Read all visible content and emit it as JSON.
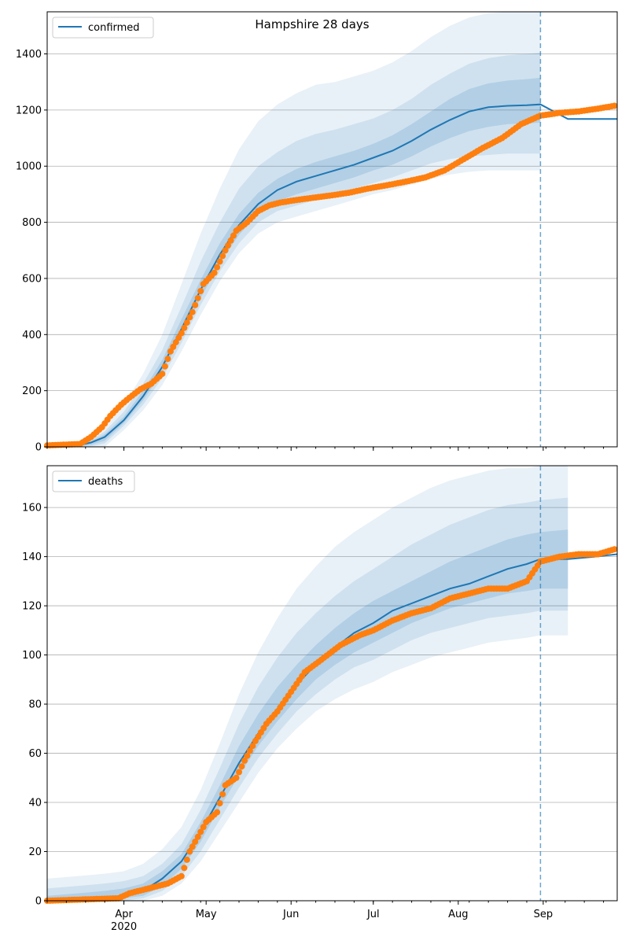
{
  "figure": {
    "title": "Hampshire 28 days",
    "date_ticks": [
      {
        "date": "2020-04-01",
        "label": "Apr",
        "sub": "2020"
      },
      {
        "date": "2020-05-01",
        "label": "May",
        "sub": ""
      },
      {
        "date": "2020-06-01",
        "label": "Jun",
        "sub": ""
      },
      {
        "date": "2020-07-01",
        "label": "Jul",
        "sub": ""
      },
      {
        "date": "2020-08-01",
        "label": "Aug",
        "sub": ""
      },
      {
        "date": "2020-09-01",
        "label": "Sep",
        "sub": ""
      }
    ],
    "forecast_date": "2020-08-31",
    "colors": {
      "model": "#1f77b4",
      "observed": "#ff7f0e",
      "band": "#1f77b4",
      "grid": "#b0b0b0"
    }
  },
  "chart_data": [
    {
      "type": "line",
      "legend": "confirmed",
      "legend_placement": "top-left",
      "grid": "horizontal",
      "xlim": [
        "2020-03-04",
        "2020-09-28"
      ],
      "ylim": [
        0,
        1550
      ],
      "yticks": [
        0,
        200,
        400,
        600,
        800,
        1000,
        1200,
        1400
      ],
      "model": {
        "name": "confirmed",
        "dates": [
          "2020-03-04",
          "2020-03-15",
          "2020-03-20",
          "2020-03-25",
          "2020-04-01",
          "2020-04-08",
          "2020-04-15",
          "2020-04-22",
          "2020-04-29",
          "2020-05-06",
          "2020-05-13",
          "2020-05-20",
          "2020-05-27",
          "2020-06-03",
          "2020-06-10",
          "2020-06-17",
          "2020-06-24",
          "2020-07-01",
          "2020-07-08",
          "2020-07-15",
          "2020-07-22",
          "2020-07-29",
          "2020-08-05",
          "2020-08-12",
          "2020-08-19",
          "2020-08-26",
          "2020-08-31",
          "2020-09-10",
          "2020-09-28"
        ],
        "values": [
          0,
          5,
          15,
          35,
          95,
          180,
          285,
          420,
          560,
          685,
          790,
          865,
          915,
          945,
          965,
          985,
          1005,
          1030,
          1055,
          1090,
          1130,
          1165,
          1195,
          1210,
          1215,
          1217,
          1220,
          1168,
          1168
        ]
      },
      "bands": [
        {
          "lower": [
            0,
            0,
            0,
            0,
            60,
            130,
            220,
            340,
            470,
            590,
            690,
            760,
            800,
            820,
            840,
            860,
            880,
            900,
            915,
            935,
            955,
            970,
            980,
            985,
            985,
            985,
            985
          ],
          "upper": [
            0,
            12,
            30,
            70,
            150,
            260,
            400,
            580,
            760,
            920,
            1060,
            1160,
            1220,
            1260,
            1290,
            1300,
            1320,
            1340,
            1370,
            1410,
            1460,
            1500,
            1530,
            1545,
            1550,
            1550,
            1550
          ]
        },
        {
          "lower": [
            0,
            0,
            2,
            12,
            75,
            150,
            245,
            370,
            505,
            625,
            725,
            800,
            840,
            860,
            880,
            900,
            920,
            940,
            960,
            985,
            1010,
            1025,
            1035,
            1040,
            1045,
            1045,
            1045
          ],
          "upper": [
            0,
            8,
            24,
            55,
            125,
            225,
            345,
            500,
            660,
            800,
            920,
            1000,
            1050,
            1090,
            1115,
            1130,
            1150,
            1170,
            1200,
            1240,
            1290,
            1330,
            1365,
            1385,
            1395,
            1400,
            1405
          ]
        },
        {
          "lower": [
            0,
            1,
            7,
            22,
            85,
            165,
            265,
            395,
            530,
            655,
            755,
            830,
            875,
            900,
            920,
            940,
            960,
            985,
            1005,
            1035,
            1070,
            1100,
            1125,
            1140,
            1150,
            1152,
            1155
          ],
          "upper": [
            0,
            6,
            20,
            45,
            108,
            200,
            310,
            455,
            595,
            725,
            830,
            905,
            955,
            990,
            1015,
            1035,
            1055,
            1080,
            1110,
            1150,
            1195,
            1240,
            1275,
            1295,
            1305,
            1310,
            1315
          ]
        }
      ],
      "observed": {
        "dates": [
          "2020-03-04",
          "2020-03-16",
          "2020-03-20",
          "2020-03-24",
          "2020-03-27",
          "2020-03-31",
          "2020-04-03",
          "2020-04-07",
          "2020-04-11",
          "2020-04-15",
          "2020-04-18",
          "2020-04-22",
          "2020-04-26",
          "2020-04-30",
          "2020-05-04",
          "2020-05-08",
          "2020-05-12",
          "2020-05-16",
          "2020-05-20",
          "2020-05-24",
          "2020-05-28",
          "2020-06-02",
          "2020-06-08",
          "2020-06-15",
          "2020-06-22",
          "2020-06-29",
          "2020-07-06",
          "2020-07-13",
          "2020-07-20",
          "2020-07-27",
          "2020-08-03",
          "2020-08-10",
          "2020-08-17",
          "2020-08-24",
          "2020-08-31",
          "2020-09-07",
          "2020-09-14",
          "2020-09-21",
          "2020-09-27"
        ],
        "values": [
          5,
          10,
          35,
          70,
          110,
          150,
          175,
          205,
          225,
          260,
          340,
          405,
          480,
          580,
          620,
          700,
          770,
          800,
          840,
          860,
          870,
          878,
          886,
          895,
          905,
          920,
          932,
          945,
          960,
          985,
          1025,
          1065,
          1100,
          1150,
          1180,
          1190,
          1195,
          1205,
          1215
        ]
      }
    },
    {
      "type": "line",
      "legend": "deaths",
      "legend_placement": "top-left",
      "grid": "horizontal",
      "xlim": [
        "2020-03-04",
        "2020-09-28"
      ],
      "ylim": [
        0,
        177
      ],
      "yticks": [
        0,
        20,
        40,
        60,
        80,
        100,
        120,
        140,
        160
      ],
      "model": {
        "name": "deaths",
        "dates": [
          "2020-03-04",
          "2020-03-15",
          "2020-03-25",
          "2020-04-01",
          "2020-04-08",
          "2020-04-15",
          "2020-04-22",
          "2020-04-29",
          "2020-05-06",
          "2020-05-13",
          "2020-05-20",
          "2020-05-27",
          "2020-06-03",
          "2020-06-10",
          "2020-06-17",
          "2020-06-24",
          "2020-07-01",
          "2020-07-08",
          "2020-07-15",
          "2020-07-22",
          "2020-07-29",
          "2020-08-05",
          "2020-08-12",
          "2020-08-19",
          "2020-08-26",
          "2020-08-31",
          "2020-09-10",
          "2020-09-20",
          "2020-09-28"
        ],
        "values": [
          0,
          0,
          1,
          2,
          4,
          9,
          16,
          28,
          42,
          56,
          68,
          78,
          88,
          96,
          103,
          109,
          113,
          118,
          121,
          124,
          127,
          129,
          132,
          135,
          137,
          139,
          139,
          140,
          141
        ]
      },
      "bands": [
        {
          "lower": [
            0,
            0,
            0,
            0,
            0,
            2,
            7,
            16,
            28,
            40,
            52,
            62,
            70,
            77,
            82,
            86,
            89,
            93,
            96,
            99,
            101,
            103,
            105,
            106,
            107,
            108,
            108
          ],
          "upper": [
            9,
            10,
            11,
            12,
            15,
            21,
            30,
            45,
            64,
            84,
            101,
            115,
            127,
            136,
            144,
            150,
            155,
            160,
            164,
            168,
            171,
            173,
            175,
            176,
            176,
            177,
            177
          ]
        },
        {
          "lower": [
            0,
            0,
            0,
            0,
            1,
            4,
            10,
            20,
            33,
            46,
            58,
            68,
            77,
            84,
            90,
            95,
            98,
            102,
            106,
            109,
            111,
            113,
            115,
            116,
            117,
            118,
            118
          ],
          "upper": [
            5,
            6,
            7,
            8,
            10,
            15,
            23,
            37,
            54,
            72,
            87,
            99,
            109,
            117,
            124,
            130,
            135,
            140,
            145,
            149,
            153,
            156,
            159,
            161,
            162,
            163,
            164
          ]
        },
        {
          "lower": [
            0,
            0,
            0,
            1,
            2,
            6,
            13,
            24,
            38,
            51,
            63,
            73,
            82,
            90,
            96,
            101,
            105,
            109,
            113,
            116,
            119,
            121,
            123,
            125,
            126,
            127,
            127
          ],
          "upper": [
            2,
            3,
            4,
            5,
            7,
            12,
            19,
            32,
            47,
            63,
            76,
            87,
            96,
            104,
            111,
            117,
            122,
            126,
            130,
            134,
            138,
            141,
            144,
            147,
            149,
            150,
            151
          ]
        }
      ],
      "observed": {
        "dates": [
          "2020-03-04",
          "2020-03-30",
          "2020-04-03",
          "2020-04-10",
          "2020-04-17",
          "2020-04-22",
          "2020-04-25",
          "2020-04-28",
          "2020-05-01",
          "2020-05-05",
          "2020-05-08",
          "2020-05-12",
          "2020-05-15",
          "2020-05-19",
          "2020-05-23",
          "2020-05-27",
          "2020-06-01",
          "2020-06-06",
          "2020-06-12",
          "2020-06-19",
          "2020-06-26",
          "2020-07-01",
          "2020-07-08",
          "2020-07-15",
          "2020-07-22",
          "2020-07-29",
          "2020-08-05",
          "2020-08-12",
          "2020-08-19",
          "2020-08-26",
          "2020-08-31",
          "2020-09-07",
          "2020-09-14",
          "2020-09-21",
          "2020-09-27"
        ],
        "values": [
          0,
          1,
          3,
          5,
          7,
          10,
          20,
          26,
          32,
          36,
          47,
          50,
          57,
          65,
          72,
          77,
          85,
          93,
          98,
          104,
          108,
          110,
          114,
          117,
          119,
          123,
          125,
          127,
          127,
          130,
          138,
          140,
          141,
          141,
          143
        ]
      }
    }
  ]
}
